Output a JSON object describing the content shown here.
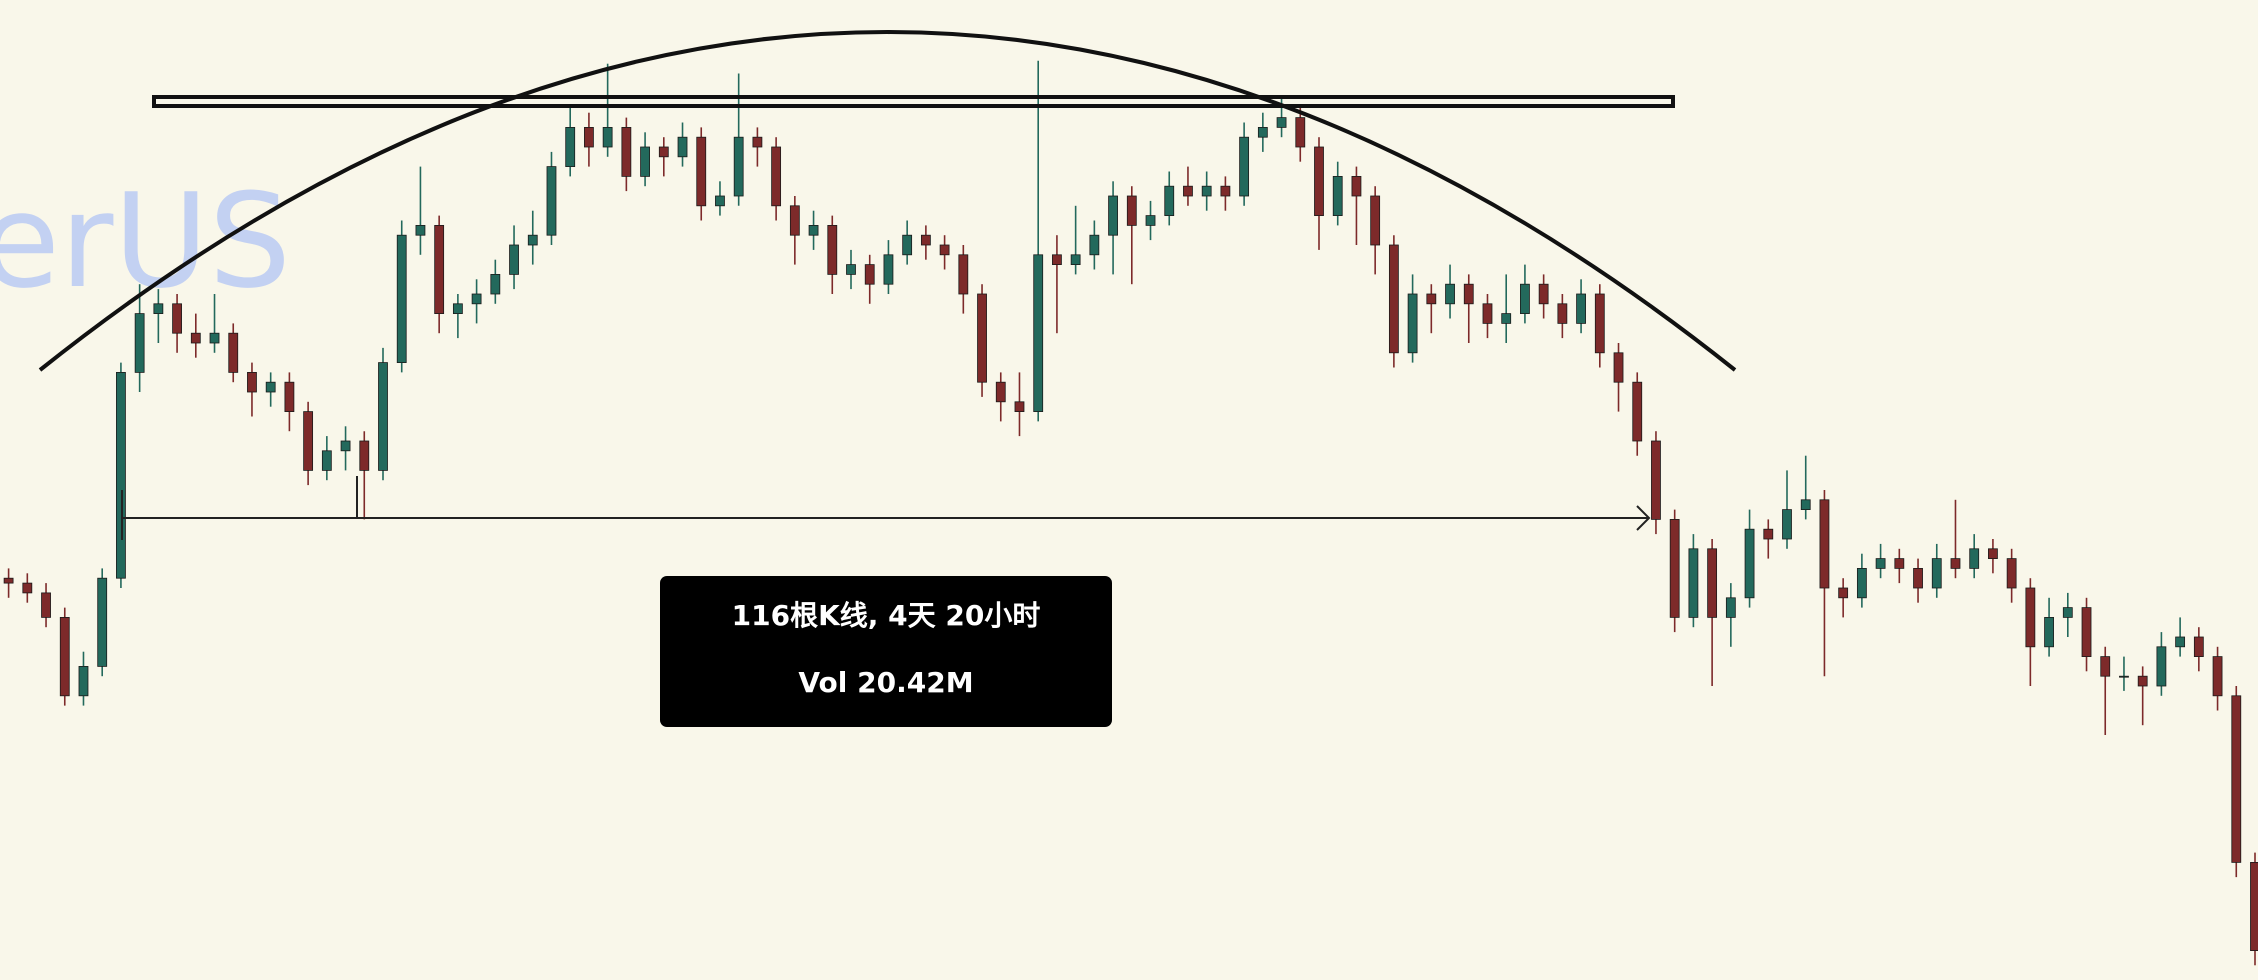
{
  "chart_data": {
    "type": "candlestick",
    "watermark": "erUS",
    "annotation": {
      "lines": [
        "116根K线, 4天 20小时",
        "Vol 20.42M"
      ]
    },
    "up_color": "#23695c",
    "down_color": "#7d2a2a",
    "ylim": [
      0,
      100
    ],
    "candles": [
      [
        41,
        42,
        39,
        40.5
      ],
      [
        40.5,
        41.5,
        38.5,
        39.5
      ],
      [
        39.5,
        40.5,
        36,
        37
      ],
      [
        37,
        38,
        28,
        29
      ],
      [
        29,
        33.5,
        28,
        32
      ],
      [
        32,
        42,
        31,
        41
      ],
      [
        41,
        63,
        40,
        62
      ],
      [
        62,
        71,
        60,
        68
      ],
      [
        68,
        70.5,
        65,
        69
      ],
      [
        69,
        70,
        64,
        66
      ],
      [
        66,
        68,
        63.5,
        65
      ],
      [
        65,
        70,
        64,
        66
      ],
      [
        66,
        67,
        61,
        62
      ],
      [
        62,
        63,
        57.5,
        60
      ],
      [
        60,
        62,
        58.5,
        61
      ],
      [
        61,
        62,
        56,
        58
      ],
      [
        58,
        59,
        50.5,
        52
      ],
      [
        52,
        55.5,
        51,
        54
      ],
      [
        54,
        56.5,
        52,
        55
      ],
      [
        55,
        56,
        47,
        52
      ],
      [
        52,
        64.5,
        51,
        63
      ],
      [
        63,
        77.5,
        62,
        76
      ],
      [
        76,
        83,
        74,
        77
      ],
      [
        77,
        78,
        66,
        68
      ],
      [
        68,
        70,
        65.5,
        69
      ],
      [
        69,
        71.5,
        67,
        70
      ],
      [
        70,
        73.5,
        69,
        72
      ],
      [
        72,
        77,
        70.5,
        75
      ],
      [
        75,
        78.5,
        73,
        76
      ],
      [
        76,
        84.5,
        75,
        83
      ],
      [
        83,
        89,
        82,
        87
      ],
      [
        87,
        88.5,
        83,
        85
      ],
      [
        85,
        93.5,
        84,
        87
      ],
      [
        87,
        88,
        80.5,
        82
      ],
      [
        82,
        86.5,
        81,
        85
      ],
      [
        85,
        86,
        82,
        84
      ],
      [
        84,
        87.5,
        83,
        86
      ],
      [
        86,
        87,
        77.5,
        79
      ],
      [
        79,
        81.5,
        78,
        80
      ],
      [
        80,
        92.5,
        79,
        86
      ],
      [
        86,
        87,
        83,
        85
      ],
      [
        85,
        86,
        77.5,
        79
      ],
      [
        79,
        80,
        73,
        76
      ],
      [
        76,
        78.5,
        74.5,
        77
      ],
      [
        77,
        78,
        70,
        72
      ],
      [
        72,
        74.5,
        70.5,
        73
      ],
      [
        73,
        74,
        69,
        71
      ],
      [
        71,
        75.5,
        70,
        74
      ],
      [
        74,
        77.5,
        73,
        76
      ],
      [
        76,
        77,
        73.5,
        75
      ],
      [
        75,
        76,
        72.5,
        74
      ],
      [
        74,
        75,
        68,
        70
      ],
      [
        70,
        71,
        59.5,
        61
      ],
      [
        61,
        62,
        57,
        59
      ],
      [
        59,
        62,
        55.5,
        58
      ],
      [
        58,
        93.8,
        57,
        74
      ],
      [
        74,
        76,
        66,
        73
      ],
      [
        73,
        79,
        72,
        74
      ],
      [
        74,
        77.5,
        72.5,
        76
      ],
      [
        76,
        81.5,
        72,
        80
      ],
      [
        80,
        81,
        71,
        77
      ],
      [
        77,
        79.5,
        75.5,
        78
      ],
      [
        78,
        82.5,
        77,
        81
      ],
      [
        81,
        83,
        79,
        80
      ],
      [
        80,
        82.5,
        78.5,
        81
      ],
      [
        81,
        82,
        78.5,
        80
      ],
      [
        80,
        87.5,
        79,
        86
      ],
      [
        86,
        88.5,
        84.5,
        87
      ],
      [
        87,
        90,
        86,
        88
      ],
      [
        88,
        89,
        83.5,
        85
      ],
      [
        85,
        86,
        74.5,
        78
      ],
      [
        78,
        83.5,
        77,
        82
      ],
      [
        82,
        83,
        75,
        80
      ],
      [
        80,
        81,
        72,
        75
      ],
      [
        75,
        76,
        62.5,
        64
      ],
      [
        64,
        72,
        63,
        70
      ],
      [
        70,
        71,
        66,
        69
      ],
      [
        69,
        73,
        67.5,
        71
      ],
      [
        71,
        72,
        65,
        69
      ],
      [
        69,
        70,
        65.5,
        67
      ],
      [
        67,
        72,
        65,
        68
      ],
      [
        68,
        73,
        67,
        71
      ],
      [
        71,
        72,
        67.5,
        69
      ],
      [
        69,
        70,
        65.5,
        67
      ],
      [
        67,
        71.5,
        66,
        70
      ],
      [
        70,
        71,
        62.5,
        64
      ],
      [
        64,
        65,
        58,
        61
      ],
      [
        61,
        62,
        53.5,
        55
      ],
      [
        55,
        56,
        45.5,
        47
      ],
      [
        47,
        48,
        35.5,
        37
      ],
      [
        37,
        45.5,
        36,
        44
      ],
      [
        44,
        45,
        30,
        37
      ],
      [
        37,
        40.5,
        34,
        39
      ],
      [
        39,
        48,
        38,
        46
      ],
      [
        46,
        47,
        43,
        45
      ],
      [
        45,
        52,
        44,
        48
      ],
      [
        48,
        53.5,
        47,
        49
      ],
      [
        49,
        50,
        31,
        40
      ],
      [
        40,
        41,
        37,
        39
      ],
      [
        39,
        43.5,
        38,
        42
      ],
      [
        42,
        44.5,
        41,
        43
      ],
      [
        43,
        44,
        40.5,
        42
      ],
      [
        42,
        43,
        38.5,
        40
      ],
      [
        40,
        44.5,
        39,
        43
      ],
      [
        43,
        49,
        41,
        42
      ],
      [
        42,
        45.5,
        41,
        44
      ],
      [
        44,
        45,
        41.5,
        43
      ],
      [
        43,
        44,
        38.5,
        40
      ],
      [
        40,
        41,
        30,
        34
      ],
      [
        34,
        39,
        33,
        37
      ],
      [
        37,
        39.5,
        35,
        38
      ],
      [
        38,
        39,
        31.5,
        33
      ],
      [
        33,
        34,
        25,
        31
      ],
      [
        31,
        33,
        29.5,
        31
      ],
      [
        31,
        32,
        26,
        30
      ],
      [
        30,
        35.5,
        29,
        34
      ],
      [
        34,
        37,
        33,
        35
      ],
      [
        35,
        36,
        31.5,
        33
      ],
      [
        33,
        34,
        27.5,
        29
      ],
      [
        29,
        30,
        10.5,
        12
      ],
      [
        12,
        13,
        1.5,
        3
      ]
    ]
  }
}
